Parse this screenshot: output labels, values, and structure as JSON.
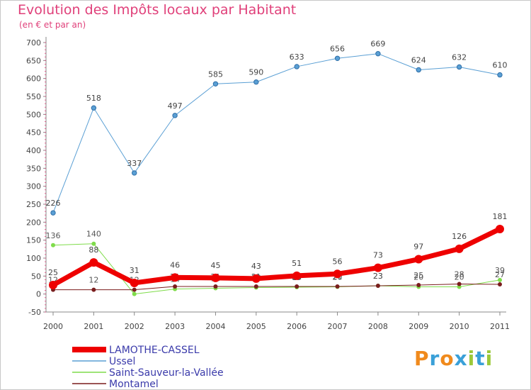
{
  "title": "Evolution des Impôts locaux par Habitant",
  "subtitle": "(en € et par an)",
  "logo_letters": [
    {
      "ch": "P",
      "color": "#f08a1c"
    },
    {
      "ch": "r",
      "color": "#3aa0d8"
    },
    {
      "ch": "o",
      "color": "#f08a1c"
    },
    {
      "ch": "x",
      "color": "#3aa0d8"
    },
    {
      "ch": "i",
      "color": "#9cc93a"
    },
    {
      "ch": "t",
      "color": "#3aa0d8"
    },
    {
      "ch": "i",
      "color": "#9cc93a"
    }
  ],
  "chart_data": {
    "type": "line",
    "title": "Evolution des Impôts locaux par Habitant",
    "subtitle": "(en € et par an)",
    "xlabel": "",
    "ylabel": "",
    "x": [
      "2000",
      "2001",
      "2002",
      "2003",
      "2004",
      "2005",
      "2006",
      "2007",
      "2008",
      "2009",
      "2010",
      "2011"
    ],
    "ylim": [
      -50,
      700
    ],
    "yticks": [
      -50,
      0,
      50,
      100,
      150,
      200,
      250,
      300,
      350,
      400,
      450,
      500,
      550,
      600,
      650,
      700
    ],
    "grid": false,
    "legend_position": "bottom-left",
    "series": [
      {
        "name": "Ussel",
        "color": "#5a9fd4",
        "values": [
          226,
          518,
          337,
          497,
          585,
          590,
          633,
          656,
          669,
          624,
          632,
          610
        ],
        "labels": [
          "226",
          "518",
          "337",
          "497",
          "585",
          "590",
          "633",
          "656",
          "669",
          "624",
          "632",
          "610"
        ]
      },
      {
        "name": "Saint-Sauveur-la-Vallée",
        "color": "#7fdc4a",
        "values": [
          136,
          140,
          0,
          14,
          16,
          18,
          19,
          20,
          23,
          20,
          20,
          39
        ],
        "labels": [
          "136",
          "140",
          "0",
          "14",
          "16",
          "18",
          "19",
          "20",
          "23",
          "20",
          "20",
          "39"
        ]
      },
      {
        "name": "Montamel",
        "color": "#7a1d1d",
        "values": [
          12,
          12,
          12,
          21,
          21,
          21,
          21,
          21,
          23,
          25,
          28,
          27
        ],
        "labels": [
          "12",
          "12",
          "12",
          "21",
          "21",
          "21",
          "21",
          "21",
          "23",
          "25",
          "28",
          "27"
        ]
      },
      {
        "name": "LAMOTHE-CASSEL",
        "color": "#ee0000",
        "values": [
          25,
          88,
          31,
          46,
          45,
          43,
          51,
          56,
          73,
          97,
          126,
          181
        ],
        "labels": [
          "25",
          "88",
          "31",
          "46",
          "45",
          "43",
          "51",
          "56",
          "73",
          "97",
          "126",
          "181"
        ]
      }
    ],
    "legend": [
      "LAMOTHE-CASSEL",
      "Ussel",
      "Saint-Sauveur-la-Vallée",
      "Montamel"
    ]
  }
}
